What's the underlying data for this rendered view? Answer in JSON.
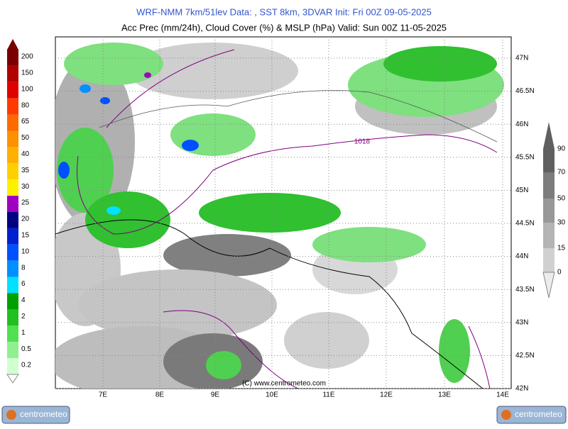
{
  "header": {
    "title": "WRF-NMM 7km/51lev  Data: , SST 8km, 3DVAR  Init: Fri 00Z 09-05-2025",
    "subtitle": "Acc Prec (mm/24h), Cloud Cover (%) & MSLP (hPa)  Valid: Sun 00Z 11-05-2025"
  },
  "precip_legend": {
    "labels": [
      "200",
      "150",
      "100",
      "80",
      "65",
      "50",
      "40",
      "35",
      "30",
      "25",
      "20",
      "15",
      "10",
      "8",
      "6",
      "4",
      "2",
      "1",
      "0.5",
      "0.2"
    ],
    "colors": [
      "#7a0000",
      "#b00000",
      "#e00000",
      "#ff3a00",
      "#ff6a00",
      "#ff9000",
      "#ffb000",
      "#ffd000",
      "#fff000",
      "#a000c0",
      "#000080",
      "#0020d0",
      "#0050ff",
      "#0090ff",
      "#00e0ff",
      "#00a000",
      "#20c020",
      "#50e050",
      "#90f090",
      "#d0ffd0"
    ]
  },
  "cloud_legend": {
    "labels": [
      "90",
      "70",
      "50",
      "30",
      "15",
      "0"
    ],
    "colors": [
      "#606060",
      "#7c7c7c",
      "#989898",
      "#b4b4b4",
      "#d0d0d0",
      "#ececec"
    ]
  },
  "map": {
    "lon_labels": [
      "7E",
      "8E",
      "9E",
      "10E",
      "11E",
      "12E",
      "13E",
      "14E"
    ],
    "lat_labels": [
      "47N",
      "46.5N",
      "46N",
      "45.5N",
      "45N",
      "44.5N",
      "44N",
      "43.5N",
      "43N",
      "42.5N",
      "42N"
    ],
    "isobar_label": "1018",
    "credit": "(C) www.centrometeo.com"
  },
  "logos": [
    "centrometeo",
    "centrometeo"
  ]
}
